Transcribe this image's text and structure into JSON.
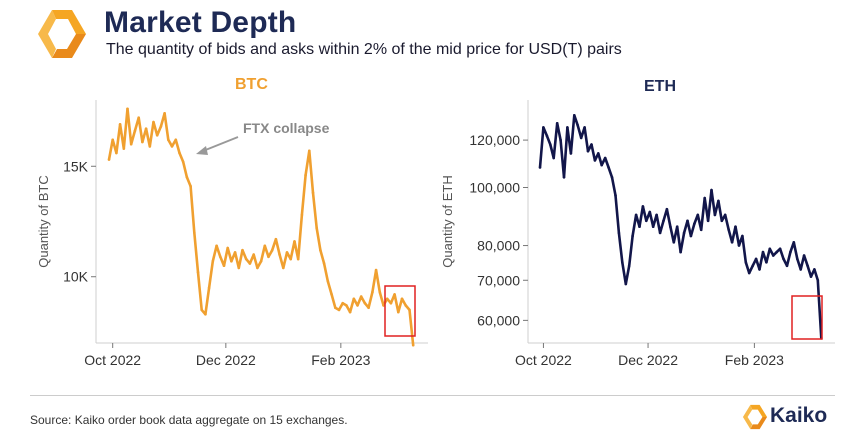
{
  "header": {
    "title": "Market Depth",
    "subtitle": "The quantity of bids and asks within 2% of the mid price for USD(T) pairs"
  },
  "colors": {
    "btc": "#f0a030",
    "eth": "#12164a",
    "brand_navy": "#1e2a55",
    "brand_orange": "#f5a623",
    "highlight_box": "#e02020"
  },
  "icons": [
    "kaiko-logo-icon",
    "annotation-arrow-icon",
    "kaiko-footer-logo-icon"
  ],
  "footer": {
    "source": "Source: Kaiko order book data aggregate on 15 exchanges.",
    "brand": "Kaiko"
  },
  "chart_data": [
    {
      "type": "line",
      "title": "BTC",
      "ylabel": "Quantity of BTC",
      "xlabel": "",
      "x_ticks": [
        "Oct 2022",
        "Dec 2022",
        "Feb 2023"
      ],
      "y_ticks": [
        "10K",
        "15K"
      ],
      "ylim": [
        7000,
        18000
      ],
      "xlim": [
        "2022-09-22",
        "2023-03-20"
      ],
      "grid": false,
      "annotation": "FTX collapse",
      "highlight": "final days (March 2023)",
      "series": [
        {
          "x": [
            "2022-09-29",
            "2022-10-01",
            "2022-10-03",
            "2022-10-05",
            "2022-10-07",
            "2022-10-09",
            "2022-10-11",
            "2022-10-13",
            "2022-10-15",
            "2022-10-17",
            "2022-10-19",
            "2022-10-21",
            "2022-10-23",
            "2022-10-25",
            "2022-10-27",
            "2022-10-29",
            "2022-10-31",
            "2022-11-02",
            "2022-11-04",
            "2022-11-06",
            "2022-11-08",
            "2022-11-10",
            "2022-11-12",
            "2022-11-14",
            "2022-11-16",
            "2022-11-18",
            "2022-11-20",
            "2022-11-22",
            "2022-11-24",
            "2022-11-26",
            "2022-11-28",
            "2022-11-30",
            "2022-12-02",
            "2022-12-04",
            "2022-12-06",
            "2022-12-08",
            "2022-12-10",
            "2022-12-12",
            "2022-12-14",
            "2022-12-16",
            "2022-12-18",
            "2022-12-20",
            "2022-12-22",
            "2022-12-24",
            "2022-12-26",
            "2022-12-28",
            "2022-12-30",
            "2023-01-01",
            "2023-01-03",
            "2023-01-05",
            "2023-01-07",
            "2023-01-09",
            "2023-01-11",
            "2023-01-13",
            "2023-01-15",
            "2023-01-17",
            "2023-01-19",
            "2023-01-21",
            "2023-01-23",
            "2023-01-25",
            "2023-01-27",
            "2023-01-29",
            "2023-01-31",
            "2023-02-02",
            "2023-02-04",
            "2023-02-06",
            "2023-02-08",
            "2023-02-10",
            "2023-02-12",
            "2023-02-14",
            "2023-02-16",
            "2023-02-18",
            "2023-02-20",
            "2023-02-22",
            "2023-02-24",
            "2023-02-26",
            "2023-02-28",
            "2023-03-02",
            "2023-03-04",
            "2023-03-06",
            "2023-03-08",
            "2023-03-10",
            "2023-03-12"
          ],
          "y": [
            15300,
            16200,
            15600,
            16900,
            15800,
            17600,
            16000,
            16600,
            17200,
            16100,
            16700,
            15900,
            17000,
            16400,
            16800,
            17400,
            16200,
            15900,
            16200,
            15600,
            15200,
            14500,
            14100,
            12000,
            10200,
            8500,
            8300,
            9500,
            10700,
            11400,
            10900,
            10500,
            11300,
            10700,
            11100,
            10400,
            11200,
            10800,
            10600,
            11000,
            10400,
            10700,
            11400,
            10900,
            11200,
            11700,
            11000,
            10400,
            11100,
            10800,
            11600,
            10800,
            12800,
            14600,
            15700,
            13800,
            12200,
            11200,
            10600,
            9800,
            9200,
            8600,
            8500,
            8800,
            8700,
            8400,
            9000,
            8700,
            9100,
            8800,
            8600,
            9300,
            10300,
            9300,
            8700,
            9000,
            8800,
            9200,
            8400,
            9000,
            8700,
            8500,
            6900
          ]
        }
      ]
    },
    {
      "type": "line",
      "title": "ETH",
      "ylabel": "Quantity of ETH",
      "xlabel": "",
      "x_ticks": [
        "Oct 2022",
        "Dec 2022",
        "Feb 2023"
      ],
      "y_ticks": [
        "60,000",
        "70,000",
        "80,000",
        "100,000",
        "120,000"
      ],
      "y_scale": "log",
      "ylim": [
        55000,
        140000
      ],
      "xlim": [
        "2022-09-22",
        "2023-03-20"
      ],
      "grid": false,
      "highlight": "final days (March 2023)",
      "series": [
        {
          "x": [
            "2022-09-29",
            "2022-10-01",
            "2022-10-03",
            "2022-10-05",
            "2022-10-07",
            "2022-10-09",
            "2022-10-11",
            "2022-10-13",
            "2022-10-15",
            "2022-10-17",
            "2022-10-19",
            "2022-10-21",
            "2022-10-23",
            "2022-10-25",
            "2022-10-27",
            "2022-10-29",
            "2022-10-31",
            "2022-11-02",
            "2022-11-04",
            "2022-11-06",
            "2022-11-08",
            "2022-11-10",
            "2022-11-12",
            "2022-11-14",
            "2022-11-16",
            "2022-11-18",
            "2022-11-20",
            "2022-11-22",
            "2022-11-24",
            "2022-11-26",
            "2022-11-28",
            "2022-11-30",
            "2022-12-02",
            "2022-12-04",
            "2022-12-06",
            "2022-12-08",
            "2022-12-10",
            "2022-12-12",
            "2022-12-14",
            "2022-12-16",
            "2022-12-18",
            "2022-12-20",
            "2022-12-22",
            "2022-12-24",
            "2022-12-26",
            "2022-12-28",
            "2022-12-30",
            "2023-01-01",
            "2023-01-03",
            "2023-01-05",
            "2023-01-07",
            "2023-01-09",
            "2023-01-11",
            "2023-01-13",
            "2023-01-15",
            "2023-01-17",
            "2023-01-19",
            "2023-01-21",
            "2023-01-23",
            "2023-01-25",
            "2023-01-27",
            "2023-01-29",
            "2023-01-31",
            "2023-02-02",
            "2023-02-04",
            "2023-02-06",
            "2023-02-08",
            "2023-02-10",
            "2023-02-12",
            "2023-02-14",
            "2023-02-16",
            "2023-02-18",
            "2023-02-20",
            "2023-02-22",
            "2023-02-24",
            "2023-02-26",
            "2023-02-28",
            "2023-03-02",
            "2023-03-04",
            "2023-03-06",
            "2023-03-08",
            "2023-03-10",
            "2023-03-12"
          ],
          "y": [
            108000,
            126000,
            122000,
            118000,
            112000,
            128000,
            120000,
            104000,
            126000,
            114000,
            132000,
            127000,
            121000,
            126000,
            115000,
            118000,
            111000,
            114000,
            109000,
            112000,
            108000,
            104000,
            97000,
            84000,
            75000,
            69000,
            74000,
            83000,
            90000,
            86000,
            93000,
            88000,
            91000,
            86000,
            90000,
            84000,
            88000,
            92000,
            86000,
            81000,
            86000,
            78000,
            84000,
            88000,
            83000,
            87000,
            90000,
            85000,
            96000,
            88000,
            99000,
            90000,
            95000,
            88000,
            90000,
            85000,
            81000,
            86000,
            80000,
            83000,
            75000,
            72000,
            74000,
            76000,
            73000,
            78000,
            75000,
            79000,
            77000,
            78000,
            79000,
            76000,
            74000,
            78000,
            81000,
            76000,
            73000,
            77000,
            74000,
            71000,
            73000,
            70000,
            56000
          ]
        }
      ]
    }
  ]
}
